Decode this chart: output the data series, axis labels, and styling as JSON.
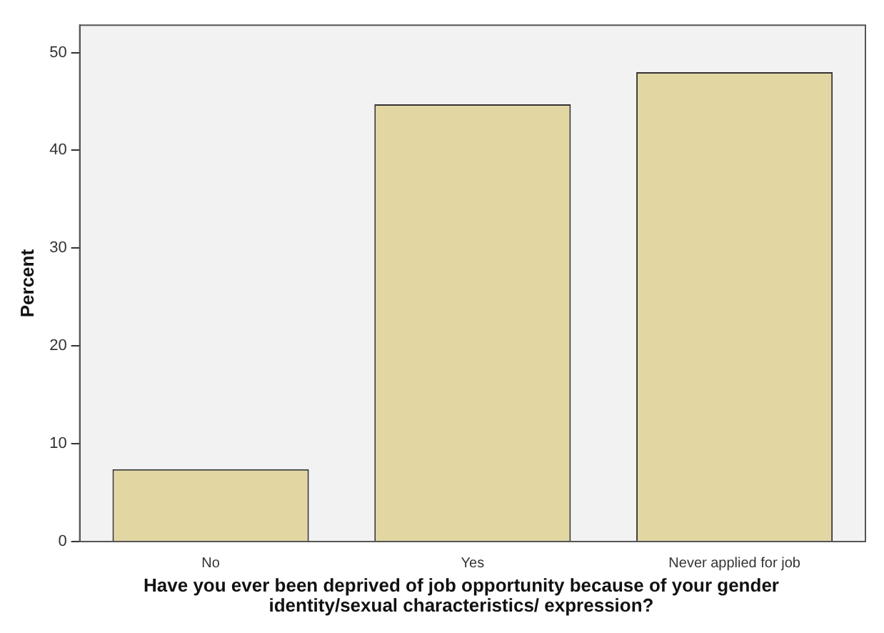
{
  "chart_data": {
    "type": "bar",
    "xlabel": "Have you ever been deprived of job opportunity because of your gender identity/sexual characteristics/ expression?",
    "ylabel": "Percent",
    "categories": [
      "No",
      "Yes",
      "Never applied for job"
    ],
    "values": [
      7.4,
      44.7,
      48.0
    ],
    "color": "#e2d6a3",
    "ylim": [
      0,
      52.8
    ],
    "yticks": [
      0,
      10,
      20,
      30,
      40,
      50
    ],
    "grid": false,
    "legend": false
  }
}
